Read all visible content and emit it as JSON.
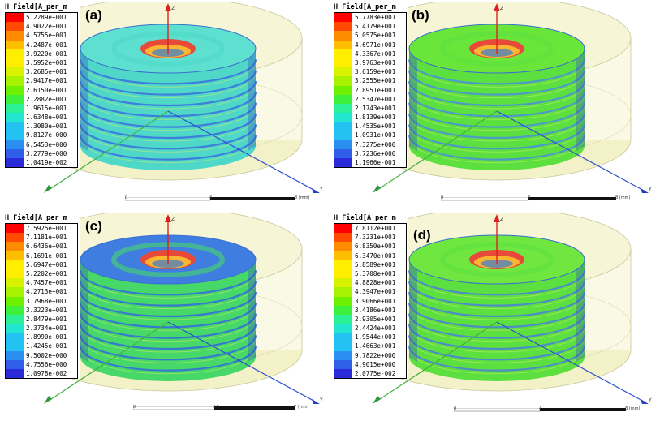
{
  "palette": [
    "#ff0000",
    "#ff4a00",
    "#ff8c00",
    "#ffbf00",
    "#ffee00",
    "#d9f200",
    "#a6f200",
    "#6ef000",
    "#3cf03c",
    "#2cf096",
    "#23e6d0",
    "#23c2f2",
    "#2a8ff0",
    "#2f5fe8",
    "#2b2bd9"
  ],
  "panels": [
    {
      "id": "a",
      "tag": "(a)",
      "legend_title": "H Field[A_per_m",
      "legend_values": [
        "5.2289e+001",
        "4.9022e+001",
        "4.5755e+001",
        "4.2487e+001",
        "3.9220e+001",
        "3.5952e+001",
        "3.2685e+001",
        "2.9417e+001",
        "2.6150e+001",
        "2.2882e+001",
        "1.9615e+001",
        "1.6348e+001",
        "1.3080e+001",
        "9.8127e+000",
        "6.5453e+000",
        "3.2779e+000",
        "1.0419e-002"
      ],
      "scale_ticks": [
        "0",
        "4",
        "8 (mm)"
      ],
      "body_color": "#4fd8c8",
      "top_color": "#5ee0d0",
      "hole_color": "#e84a3a",
      "band_color": "#3a6fe0"
    },
    {
      "id": "b",
      "tag": "(b)",
      "legend_title": "H Field[A_per_m",
      "legend_values": [
        "5.7783e+001",
        "5.4179e+001",
        "5.0575e+001",
        "4.6971e+001",
        "4.3367e+001",
        "3.9763e+001",
        "3.6159e+001",
        "3.2555e+001",
        "2.8951e+001",
        "2.5347e+001",
        "2.1743e+001",
        "1.8139e+001",
        "1.4535e+001",
        "1.0931e+001",
        "7.3275e+000",
        "3.7236e+000",
        "1.1966e-001"
      ],
      "scale_ticks": [
        "0",
        "4",
        "8 (mm)"
      ],
      "body_color": "#5ce040",
      "top_color": "#6ae63a",
      "hole_color": "#e84a3a",
      "band_color": "#4b8ce0"
    },
    {
      "id": "c",
      "tag": "(c)",
      "legend_title": "H Field[A_per_m",
      "legend_values": [
        "7.5925e+001",
        "7.1181e+001",
        "6.6436e+001",
        "6.1691e+001",
        "5.6947e+001",
        "5.2202e+001",
        "4.7457e+001",
        "4.2713e+001",
        "3.7968e+001",
        "3.3223e+001",
        "2.8479e+001",
        "2.3734e+001",
        "1.8990e+001",
        "1.4245e+001",
        "9.5002e+000",
        "4.7556e+000",
        "1.0978e-002"
      ],
      "scale_ticks": [
        "0",
        "3.5",
        "7 (mm)"
      ],
      "body_color": "#46d868",
      "top_color": "#3f7de0",
      "hole_color": "#e84a3a",
      "band_color": "#3468e0"
    },
    {
      "id": "d",
      "tag": "(d)",
      "legend_title": "H Field[A_per_m",
      "legend_values": [
        "7.8112e+001",
        "7.3231e+001",
        "6.8350e+001",
        "6.3470e+001",
        "5.8589e+001",
        "5.3708e+001",
        "4.8828e+001",
        "4.3947e+001",
        "3.9066e+001",
        "3.4186e+001",
        "2.9305e+001",
        "2.4424e+001",
        "1.9544e+001",
        "1.4663e+001",
        "9.7822e+000",
        "4.9015e+000",
        "2.0775e-002"
      ],
      "scale_ticks": [
        "0",
        "4",
        "8 (mm)"
      ],
      "body_color": "#5ce040",
      "top_color": "#70e640",
      "hole_color": "#e84a3a",
      "band_color": "#4b7ce0"
    }
  ],
  "axes": {
    "z": "Z",
    "y": "Y"
  }
}
